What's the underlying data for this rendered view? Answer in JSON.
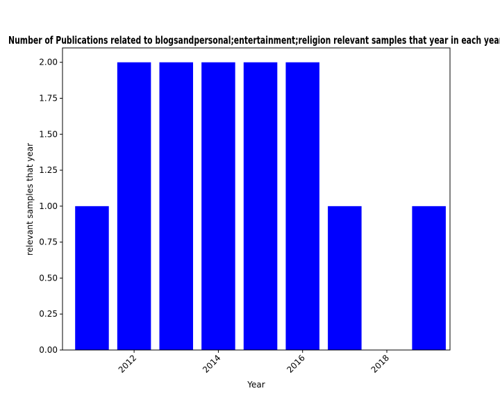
{
  "chart_data": {
    "type": "bar",
    "title": "Number of Publications related to blogsandpersonal;entertainment;religion relevant samples that year in each year",
    "xlabel": "Year",
    "ylabel": "relevant samples that year",
    "x": [
      2011,
      2012,
      2013,
      2014,
      2015,
      2016,
      2017,
      2019
    ],
    "values": [
      1,
      2,
      2,
      2,
      2,
      2,
      1,
      1
    ],
    "xlim": [
      2010.3,
      2019.5
    ],
    "ylim": [
      0,
      2.1
    ],
    "xticks": [
      2012,
      2014,
      2016,
      2018
    ],
    "xtick_labels": [
      "2012",
      "2014",
      "2016",
      "2018"
    ],
    "yticks": [
      0,
      0.25,
      0.5,
      0.75,
      1.0,
      1.25,
      1.5,
      1.75,
      2.0
    ],
    "ytick_labels": [
      "0.00",
      "0.25",
      "0.50",
      "0.75",
      "1.00",
      "1.25",
      "1.50",
      "1.75",
      "2.00"
    ],
    "bar_color": "#0000ff",
    "grid": false,
    "legend": "none"
  }
}
